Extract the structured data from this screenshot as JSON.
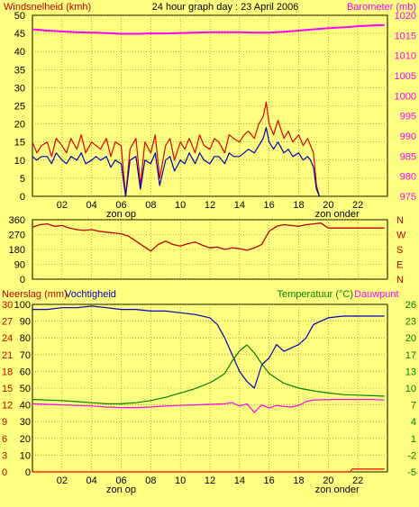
{
  "header": {
    "left": "Windsnelheid (kmh)",
    "center": "24 hour graph day : 23 April 2006",
    "right": "Barometer (mb)"
  },
  "colors": {
    "background": "#ffff80",
    "plot_background": "#ffff80",
    "grid": "#808000",
    "wind_gust": "#e00000",
    "wind_avg": "#0000c0",
    "barometer": "#ff00ff",
    "direction": "#c00000",
    "humidity": "#0000c0",
    "temperature": "#008000",
    "dewpoint": "#ff00ff",
    "rain": "#ff0000",
    "label_red": "#c00000",
    "label_green": "#008000",
    "label_magenta": "#ff00ff"
  },
  "time_axis": {
    "ticks": [
      "02",
      "04",
      "06",
      "08",
      "10",
      "12",
      "14",
      "16",
      "18",
      "20",
      "22"
    ],
    "sunrise_label": "zon op",
    "sunset_label": "zon onder",
    "sunrise_hour": 6,
    "sunset_hour": 20.6
  },
  "chart_data": [
    {
      "type": "line",
      "name": "wind-barometer",
      "left_axis": {
        "label": "Windsnelheid (kmh)",
        "ylim": [
          0,
          50
        ],
        "ticks": [
          "0",
          "5",
          "10",
          "15",
          "20",
          "25",
          "30",
          "35",
          "40",
          "45",
          "50"
        ]
      },
      "right_axis": {
        "label": "Barometer (mb)",
        "ylim": [
          975,
          1020
        ],
        "ticks": [
          "975",
          "980",
          "985",
          "990",
          "995",
          "1000",
          "1005",
          "1010",
          "1015",
          "1020"
        ]
      },
      "xlim": [
        0,
        24
      ],
      "series": [
        {
          "key": "barometer",
          "axis": "right",
          "x": [
            0,
            1,
            2,
            3,
            4,
            5,
            6,
            7,
            8,
            9,
            10,
            11,
            12,
            13,
            14,
            15,
            16,
            17,
            18,
            19,
            20,
            21,
            22,
            23,
            23.8
          ],
          "y": [
            1016.5,
            1016.2,
            1016,
            1015.8,
            1015.7,
            1015.6,
            1015.4,
            1015.4,
            1015.5,
            1015.5,
            1015.6,
            1015.7,
            1015.8,
            1015.8,
            1015.8,
            1015.7,
            1015.7,
            1015.9,
            1016.2,
            1016.5,
            1016.8,
            1017.0,
            1017.3,
            1017.5,
            1017.6
          ]
        },
        {
          "key": "wind_gust",
          "axis": "left",
          "x": [
            0,
            0.3,
            0.6,
            1,
            1.3,
            1.6,
            2,
            2.3,
            2.6,
            3,
            3.3,
            3.6,
            4,
            4.3,
            4.6,
            5,
            5.3,
            5.6,
            6,
            6.3,
            6.6,
            7,
            7.3,
            7.6,
            8,
            8.3,
            8.6,
            9,
            9.3,
            9.6,
            10,
            10.3,
            10.6,
            11,
            11.3,
            11.6,
            12,
            12.3,
            12.6,
            13,
            13.3,
            13.6,
            14,
            14.3,
            14.6,
            15,
            15.3,
            15.6,
            15.8,
            16,
            16.3,
            16.6,
            17,
            17.3,
            17.6,
            18,
            18.3,
            18.6,
            18.8,
            19,
            19.2,
            19.4
          ],
          "y": [
            15,
            12,
            14,
            15,
            11,
            16,
            14,
            12,
            16,
            13,
            17,
            12,
            15,
            14,
            13,
            16,
            11,
            15,
            14,
            0,
            13,
            16,
            3,
            15,
            12,
            17,
            5,
            14,
            16,
            10,
            15,
            13,
            16,
            12,
            17,
            14,
            13,
            16,
            15,
            12,
            17,
            16,
            15,
            17,
            18,
            16,
            20,
            22,
            26,
            20,
            17,
            21,
            16,
            18,
            15,
            17,
            14,
            16,
            14,
            12,
            3,
            0
          ]
        },
        {
          "key": "wind_avg",
          "axis": "left",
          "x": [
            0,
            0.3,
            0.6,
            1,
            1.3,
            1.6,
            2,
            2.3,
            2.6,
            3,
            3.3,
            3.6,
            4,
            4.3,
            4.6,
            5,
            5.3,
            5.6,
            6,
            6.3,
            6.6,
            7,
            7.3,
            7.6,
            8,
            8.3,
            8.6,
            9,
            9.3,
            9.6,
            10,
            10.3,
            10.6,
            11,
            11.3,
            11.6,
            12,
            12.3,
            12.6,
            13,
            13.3,
            13.6,
            14,
            14.3,
            14.6,
            15,
            15.3,
            15.6,
            15.8,
            16,
            16.3,
            16.6,
            17,
            17.3,
            17.6,
            18,
            18.3,
            18.6,
            18.8,
            19,
            19.2,
            19.4
          ],
          "y": [
            11,
            10,
            11,
            11,
            9,
            12,
            10,
            9,
            11,
            10,
            12,
            9,
            10,
            11,
            10,
            11,
            8,
            10,
            9,
            0,
            10,
            11,
            2,
            10,
            9,
            12,
            3,
            10,
            11,
            7,
            10,
            9,
            12,
            9,
            12,
            10,
            9,
            11,
            11,
            9,
            12,
            11,
            11,
            12,
            13,
            12,
            14,
            16,
            19,
            15,
            13,
            15,
            12,
            13,
            11,
            12,
            10,
            11,
            10,
            8,
            2,
            0
          ]
        }
      ]
    },
    {
      "type": "line",
      "name": "wind-direction",
      "left_axis": {
        "ylim": [
          0,
          360
        ],
        "ticks": [
          "0",
          "90",
          "180",
          "270",
          "360"
        ]
      },
      "right_axis": {
        "ticks": [
          "N",
          "E",
          "S",
          "W",
          "N"
        ]
      },
      "xlim": [
        0,
        24
      ],
      "series": [
        {
          "key": "direction",
          "x": [
            0,
            0.5,
            1,
            1.5,
            2,
            2.5,
            3,
            3.5,
            4,
            4.5,
            5,
            5.5,
            6,
            6.5,
            7,
            7.5,
            8,
            8.5,
            9,
            9.5,
            10,
            10.5,
            11,
            11.5,
            12,
            12.5,
            13,
            13.5,
            14,
            14.5,
            15,
            15.5,
            16,
            16.5,
            17,
            17.5,
            18,
            18.5,
            19,
            19.5,
            20,
            21,
            22,
            23,
            23.8
          ],
          "y": [
            315,
            330,
            335,
            320,
            325,
            310,
            300,
            295,
            300,
            290,
            285,
            280,
            275,
            260,
            230,
            200,
            170,
            210,
            230,
            210,
            200,
            215,
            225,
            205,
            190,
            195,
            180,
            190,
            185,
            175,
            190,
            210,
            290,
            320,
            330,
            325,
            320,
            330,
            335,
            340,
            310,
            310,
            310,
            310,
            310
          ]
        }
      ]
    },
    {
      "type": "line",
      "name": "rain-humidity-temperature",
      "left_axis": {
        "label_rain": "Neerslag (mm)",
        "label_hum": "Vochtigheid",
        "ylim": [
          0,
          100
        ],
        "rain_ticks": [
          "0",
          "3",
          "6",
          "9",
          "12",
          "15",
          "18",
          "21",
          "24",
          "27",
          "30"
        ],
        "hum_ticks": [
          "0",
          "10",
          "20",
          "30",
          "40",
          "50",
          "60",
          "70",
          "80",
          "90",
          "100"
        ]
      },
      "right_axis": {
        "label_temp": "Temperatuur (°C)",
        "label_dew": "Dauwpunt",
        "ylim": [
          -5,
          26
        ],
        "ticks": [
          "-5",
          "-2",
          "1",
          "4",
          "7",
          "10",
          "13",
          "17",
          "20",
          "23",
          "26"
        ]
      },
      "xlim": [
        0,
        24
      ],
      "series": [
        {
          "key": "humidity",
          "axis": "hum",
          "x": [
            0,
            1,
            2,
            3,
            4,
            5,
            6,
            7,
            8,
            9,
            10,
            11,
            12,
            12.5,
            13,
            13.5,
            14,
            14.5,
            15,
            15.5,
            16,
            16.5,
            17,
            17.5,
            18,
            18.5,
            19,
            20,
            21,
            22,
            23,
            23.8
          ],
          "y": [
            97,
            97,
            98,
            98,
            99,
            98,
            97,
            97,
            96,
            96,
            95,
            94,
            92,
            88,
            80,
            70,
            60,
            54,
            50,
            64,
            68,
            76,
            72,
            74,
            76,
            80,
            88,
            92,
            93,
            93,
            93,
            93
          ]
        },
        {
          "key": "temperature",
          "axis": "temp",
          "x": [
            0,
            1,
            2,
            3,
            4,
            5,
            6,
            7,
            8,
            9,
            10,
            11,
            12,
            12.5,
            13,
            13.5,
            14,
            14.5,
            15,
            15.5,
            16,
            16.5,
            17,
            18,
            19,
            20,
            21,
            22,
            23,
            23.8
          ],
          "y": [
            8.4,
            8.3,
            8.2,
            8.0,
            7.8,
            7.6,
            7.6,
            7.8,
            8.2,
            8.8,
            9.6,
            10.4,
            11.5,
            12.3,
            13.2,
            15.5,
            17.4,
            18.5,
            17.0,
            15.0,
            13.2,
            12.3,
            11.4,
            10.5,
            10.0,
            9.6,
            9.3,
            9.2,
            9.1,
            9.0
          ]
        },
        {
          "key": "dewpoint",
          "axis": "temp",
          "x": [
            0,
            1,
            2,
            3,
            4,
            5,
            6,
            7,
            8,
            9,
            10,
            11,
            12,
            13,
            13.5,
            14,
            14.5,
            15,
            15.5,
            16,
            16.5,
            17,
            17.5,
            18,
            18.5,
            19,
            20,
            21,
            22,
            23,
            23.8
          ],
          "y": [
            7.6,
            7.5,
            7.4,
            7.3,
            7.2,
            7.0,
            6.9,
            6.9,
            7.0,
            7.2,
            7.3,
            7.4,
            7.5,
            7.6,
            7.8,
            7.2,
            7.6,
            6.0,
            7.4,
            6.8,
            7.3,
            7.1,
            7.0,
            7.3,
            8.0,
            8.3,
            8.4,
            8.4,
            8.4,
            8.4,
            8.3
          ]
        },
        {
          "key": "rain",
          "axis": "rain",
          "x": [
            0,
            21.5,
            21.6,
            23.8
          ],
          "y": [
            0,
            0,
            0.5,
            0.5
          ]
        }
      ]
    }
  ]
}
